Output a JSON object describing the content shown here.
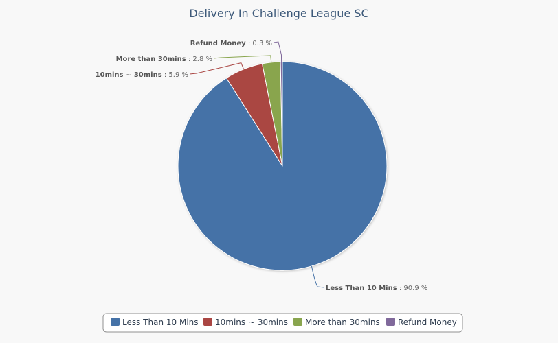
{
  "chart_data": {
    "type": "pie",
    "title": "Delivery In Challenge League SC",
    "slices": [
      {
        "name": "Less Than 10 Mins",
        "value": 90.9,
        "color": "#4572a7"
      },
      {
        "name": "10mins ~ 30mins",
        "value": 5.9,
        "color": "#aa4643"
      },
      {
        "name": "More than 30mins",
        "value": 2.8,
        "color": "#89a54e"
      },
      {
        "name": "Refund Money",
        "value": 0.3,
        "color": "#80699b"
      }
    ],
    "value_suffix": " %",
    "label_separator": " : ",
    "legend_placement": "bottom-center",
    "start_angle": "top",
    "direction": "clockwise"
  }
}
